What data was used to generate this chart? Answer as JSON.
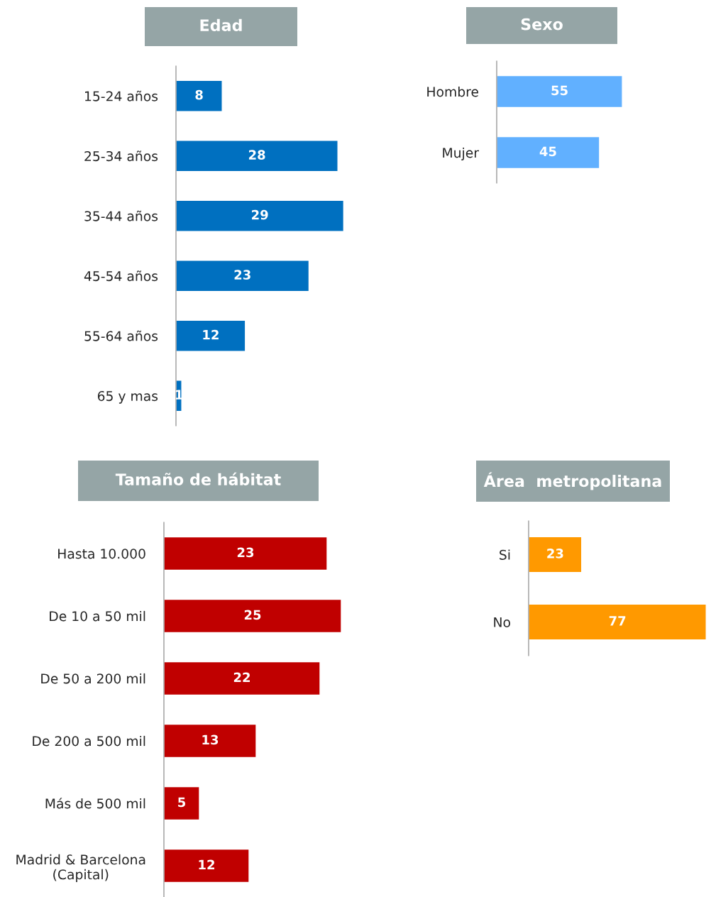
{
  "chart_data": [
    {
      "type": "bar",
      "orientation": "horizontal",
      "title": "Edad",
      "categories": [
        "15-24 años",
        "25-34 años",
        "35-44 años",
        "45-54 años",
        "55-64 años",
        "65 y mas"
      ],
      "values": [
        8,
        28,
        29,
        23,
        12,
        1
      ],
      "color": "#0070c0",
      "data_labels": true
    },
    {
      "type": "bar",
      "orientation": "horizontal",
      "title": "Sexo",
      "categories": [
        "Hombre",
        "Mujer"
      ],
      "values": [
        55,
        45
      ],
      "color": "#61b0ff",
      "data_labels": true
    },
    {
      "type": "bar",
      "orientation": "horizontal",
      "title": "Tamaño de hábitat",
      "categories": [
        "Hasta 10.000",
        "De 10 a 50 mil",
        "De 50 a 200 mil",
        "De 200 a 500 mil",
        "Más de 500 mil",
        "Madrid & Barcelona\n(Capital)"
      ],
      "values": [
        23,
        25,
        22,
        13,
        5,
        12
      ],
      "color": "#c00000",
      "data_labels": true
    },
    {
      "type": "bar",
      "orientation": "horizontal",
      "title": "Área  metropolitana",
      "categories": [
        "Si",
        "No"
      ],
      "values": [
        23,
        77
      ],
      "color": "#ff9900",
      "data_labels": true
    }
  ]
}
